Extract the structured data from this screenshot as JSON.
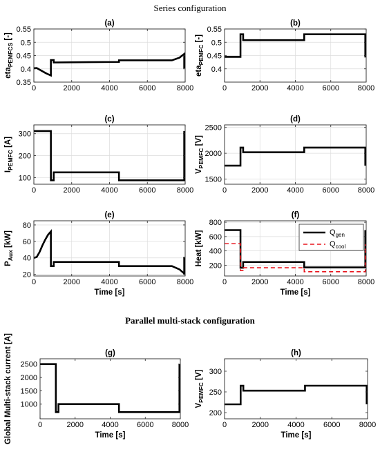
{
  "figure": {
    "series_title": "Series configuration",
    "parallel_title": "Parallel multi-stack configuration"
  },
  "chart_data": [
    {
      "id": "a",
      "type": "line",
      "title": "(a)",
      "xlabel": "",
      "ylabel": "eta",
      "ylabel_sub": "PEMFCS",
      "ylabel_unit": " [-]",
      "xlim": [
        0,
        8000
      ],
      "ylim": [
        0.35,
        0.55
      ],
      "xticks": [
        0,
        2000,
        4000,
        6000,
        8000
      ],
      "yticks": [
        0.35,
        0.4,
        0.45,
        0.5,
        0.55
      ],
      "ytick_labels": [
        "0.35",
        "0.4",
        "0.45",
        "0.5",
        "0.55"
      ],
      "grid": true,
      "series": [
        {
          "color": "#000000",
          "style": "solid",
          "x": [
            0,
            150,
            400,
            650,
            900,
            900,
            1050,
            1050,
            4500,
            4500,
            7300,
            7700,
            7950,
            7950
          ],
          "y": [
            0.402,
            0.403,
            0.393,
            0.383,
            0.375,
            0.433,
            0.433,
            0.424,
            0.426,
            0.432,
            0.432,
            0.442,
            0.456,
            0.402
          ]
        }
      ]
    },
    {
      "id": "b",
      "type": "line",
      "title": "(b)",
      "xlabel": "",
      "ylabel": "eta",
      "ylabel_sub": "PEMFC",
      "ylabel_unit": " [-]",
      "xlim": [
        0,
        8000
      ],
      "ylim": [
        0.35,
        0.55
      ],
      "xticks": [
        0,
        2000,
        4000,
        6000,
        8000
      ],
      "yticks": [
        0.4,
        0.45,
        0.5,
        0.55
      ],
      "ytick_labels": [
        "0.4",
        "0.45",
        "0.5",
        "0.55"
      ],
      "grid": true,
      "series": [
        {
          "color": "#000000",
          "style": "solid",
          "x": [
            0,
            900,
            900,
            1050,
            1050,
            4500,
            4500,
            7950,
            7950
          ],
          "y": [
            0.445,
            0.445,
            0.53,
            0.53,
            0.508,
            0.508,
            0.53,
            0.53,
            0.443
          ]
        }
      ]
    },
    {
      "id": "c",
      "type": "line",
      "title": "(c)",
      "xlabel": "",
      "ylabel": "I",
      "ylabel_sub": "PEMFC",
      "ylabel_unit": " [A]",
      "xlim": [
        0,
        8000
      ],
      "ylim": [
        70,
        340
      ],
      "xticks": [
        0,
        2000,
        4000,
        6000,
        8000
      ],
      "yticks": [
        100,
        200,
        300
      ],
      "ytick_labels": [
        "100",
        "200",
        "300"
      ],
      "grid": true,
      "series": [
        {
          "color": "#000000",
          "style": "solid",
          "x": [
            0,
            900,
            900,
            1050,
            1050,
            4500,
            4500,
            7950,
            7950
          ],
          "y": [
            312,
            312,
            88,
            88,
            124,
            124,
            88,
            88,
            312
          ]
        }
      ]
    },
    {
      "id": "d",
      "type": "line",
      "title": "(d)",
      "xlabel": "",
      "ylabel": "V",
      "ylabel_sub": "PEMFC",
      "ylabel_unit": " [V]",
      "xlim": [
        0,
        8000
      ],
      "ylim": [
        1400,
        2550
      ],
      "xticks": [
        0,
        2000,
        4000,
        6000,
        8000
      ],
      "yticks": [
        1500,
        2000,
        2500
      ],
      "ytick_labels": [
        "1500",
        "2000",
        "2500"
      ],
      "grid": true,
      "series": [
        {
          "color": "#000000",
          "style": "solid",
          "x": [
            0,
            900,
            900,
            1050,
            1050,
            4500,
            4500,
            7950,
            7950
          ],
          "y": [
            1760,
            1760,
            2110,
            2110,
            2020,
            2020,
            2110,
            2110,
            1760
          ]
        }
      ]
    },
    {
      "id": "e",
      "type": "line",
      "title": "(e)",
      "xlabel": "Time [s]",
      "ylabel": "P",
      "ylabel_sub": "Aux",
      "ylabel_unit": " [kW]",
      "xlim": [
        0,
        8000
      ],
      "ylim": [
        18,
        85
      ],
      "xticks": [
        0,
        2000,
        4000,
        6000,
        8000
      ],
      "yticks": [
        20,
        40,
        60,
        80
      ],
      "ytick_labels": [
        "20",
        "40",
        "60",
        "80"
      ],
      "grid": true,
      "series": [
        {
          "color": "#000000",
          "style": "solid",
          "x": [
            0,
            150,
            300,
            450,
            600,
            750,
            900,
            900,
            1050,
            1050,
            4500,
            4500,
            7300,
            7700,
            7950,
            7950
          ],
          "y": [
            40,
            41,
            47,
            55,
            62,
            68,
            72,
            30,
            30,
            35,
            35,
            30,
            30,
            26,
            21,
            41
          ]
        }
      ]
    },
    {
      "id": "f",
      "type": "line",
      "title": "(f)",
      "xlabel": "Time [s]",
      "ylabel": "Heat",
      "ylabel_sub": "",
      "ylabel_unit": " [kW]",
      "xlim": [
        0,
        8000
      ],
      "ylim": [
        50,
        820
      ],
      "xticks": [
        0,
        2000,
        4000,
        6000,
        8000
      ],
      "yticks": [
        200,
        400,
        600,
        800
      ],
      "ytick_labels": [
        "200",
        "400",
        "600",
        "800"
      ],
      "grid": true,
      "legend": {
        "position": "top-right"
      },
      "series": [
        {
          "name": "Q",
          "name_sub": "gen",
          "color": "#000000",
          "style": "solid",
          "x": [
            0,
            900,
            900,
            1050,
            1050,
            4500,
            4500,
            7950,
            7950
          ],
          "y": [
            690,
            690,
            165,
            165,
            245,
            245,
            170,
            170,
            690
          ]
        },
        {
          "name": "Q",
          "name_sub": "cool",
          "color": "#e8141c",
          "style": "dashed",
          "x": [
            0,
            900,
            900,
            1050,
            1050,
            4500,
            4500,
            7950,
            7950
          ],
          "y": [
            500,
            500,
            125,
            125,
            165,
            165,
            110,
            110,
            490
          ]
        }
      ]
    },
    {
      "id": "g",
      "type": "line",
      "title": "(g)",
      "xlabel": "Time [s]",
      "ylabel": "Global Multi-stack current [A]",
      "ylabel_sub": "",
      "ylabel_unit": "",
      "xlim": [
        0,
        8000
      ],
      "ylim": [
        450,
        2700
      ],
      "xticks": [
        0,
        2000,
        4000,
        6000,
        8000
      ],
      "yticks": [
        1000,
        1500,
        2000,
        2500
      ],
      "ytick_labels": [
        "1000",
        "1500",
        "2000",
        "2500"
      ],
      "grid": false,
      "series": [
        {
          "color": "#000000",
          "style": "solid",
          "x": [
            0,
            900,
            900,
            1050,
            1050,
            4500,
            4500,
            7950,
            7950
          ],
          "y": [
            2500,
            2500,
            700,
            700,
            1000,
            1000,
            700,
            700,
            2500
          ]
        }
      ]
    },
    {
      "id": "h",
      "type": "line",
      "title": "(h)",
      "xlabel": "Time [s]",
      "ylabel": "V",
      "ylabel_sub": "PEMFC",
      "ylabel_unit": " [V]",
      "xlim": [
        0,
        8000
      ],
      "ylim": [
        185,
        330
      ],
      "xticks": [
        0,
        2000,
        4000,
        6000,
        8000
      ],
      "yticks": [
        200,
        250,
        300
      ],
      "ytick_labels": [
        "200",
        "250",
        "300"
      ],
      "grid": false,
      "series": [
        {
          "color": "#000000",
          "style": "solid",
          "x": [
            0,
            900,
            900,
            1050,
            1050,
            4500,
            4500,
            7950,
            7950
          ],
          "y": [
            220,
            220,
            265,
            265,
            253,
            253,
            265,
            265,
            220
          ]
        }
      ]
    }
  ]
}
